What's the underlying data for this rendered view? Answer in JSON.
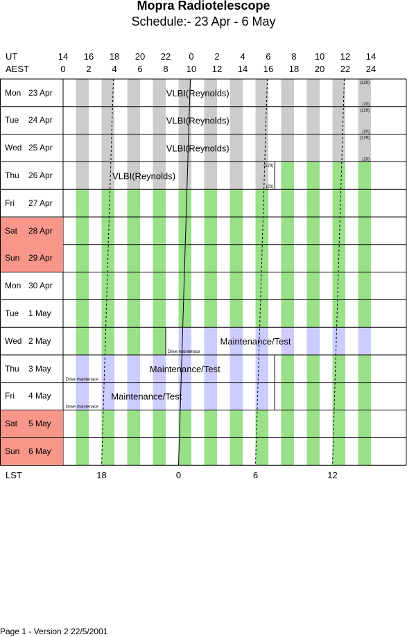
{
  "title": "Mopra Radiotelescope",
  "subtitle": "Schedule:- 23 Apr - 6  May",
  "header": {
    "ut_label": "UT",
    "aest_label": "AEST",
    "ut_hours": [
      "14",
      "16",
      "18",
      "20",
      "22",
      "0",
      "2",
      "4",
      "6",
      "8",
      "10",
      "12",
      "14"
    ],
    "aest_hours": [
      "0",
      "2",
      "4",
      "6",
      "8",
      "10",
      "12",
      "14",
      "16",
      "18",
      "20",
      "22",
      "24"
    ]
  },
  "days": [
    {
      "dow": "Mon",
      "date": "23 Apr",
      "weekend": false
    },
    {
      "dow": "Tue",
      "date": "24 Apr",
      "weekend": false
    },
    {
      "dow": "Wed",
      "date": "25 Apr",
      "weekend": false
    },
    {
      "dow": "Thu",
      "date": "26 Apr",
      "weekend": false
    },
    {
      "dow": "Fri",
      "date": "27 Apr",
      "weekend": false
    },
    {
      "dow": "Sat",
      "date": "28 Apr",
      "weekend": true
    },
    {
      "dow": "Sun",
      "date": "29 Apr",
      "weekend": true
    },
    {
      "dow": "Mon",
      "date": "30 Apr",
      "weekend": false
    },
    {
      "dow": "Tue",
      "date": "1  May",
      "weekend": false
    },
    {
      "dow": "Wed",
      "date": "2  May",
      "weekend": false
    },
    {
      "dow": "Thu",
      "date": "3  May",
      "weekend": false
    },
    {
      "dow": "Fri",
      "date": "4  May",
      "weekend": false
    },
    {
      "dow": "Sat",
      "date": "5  May",
      "weekend": true
    },
    {
      "dow": "Sun",
      "date": "6  May",
      "weekend": true
    }
  ],
  "colors": {
    "vlbi": "#cccccc",
    "free": "#99e089",
    "maint": "#ccccff",
    "weekend": "#f8968a"
  },
  "blocks": [
    {
      "day": 0,
      "start_aest": 1,
      "end_aest": 24,
      "kind": "vlbi",
      "label": "VLBI(Reynolds)",
      "label_at": 10.5,
      "corner_top": "(129)",
      "corner_bottom": "(20)"
    },
    {
      "day": 1,
      "start_aest": 1,
      "end_aest": 24,
      "kind": "vlbi",
      "label": "VLBI(Reynolds)",
      "label_at": 10.5,
      "corner_top": "(129)",
      "corner_bottom": "(20)"
    },
    {
      "day": 2,
      "start_aest": 1,
      "end_aest": 24,
      "kind": "vlbi",
      "label": "VLBI(Reynolds)",
      "label_at": 10.5,
      "corner_top": "(129)",
      "corner_bottom": "(20)"
    },
    {
      "day": 3,
      "start_aest": 1,
      "end_aest": 16.5,
      "kind": "vlbi",
      "label": "VLBI(Reynolds)",
      "label_at": 6.3,
      "corner_top": "(129)",
      "corner_bottom": "(20)"
    },
    {
      "day": 3,
      "start_aest": 16.5,
      "end_aest": 24,
      "kind": "free"
    },
    {
      "day": 4,
      "start_aest": 1,
      "end_aest": 24,
      "kind": "free"
    },
    {
      "day": 5,
      "start_aest": 1,
      "end_aest": 24,
      "kind": "free"
    },
    {
      "day": 6,
      "start_aest": 1,
      "end_aest": 24,
      "kind": "free"
    },
    {
      "day": 7,
      "start_aest": 1,
      "end_aest": 24,
      "kind": "free"
    },
    {
      "day": 8,
      "start_aest": 1,
      "end_aest": 24,
      "kind": "free"
    },
    {
      "day": 9,
      "start_aest": 1,
      "end_aest": 8,
      "kind": "free"
    },
    {
      "day": 9,
      "start_aest": 8,
      "end_aest": 24,
      "kind": "maint",
      "label": "Maintenance/Test",
      "label_at": 15,
      "small_label": "Drive maintenace"
    },
    {
      "day": 10,
      "start_aest": 1,
      "end_aest": 16.5,
      "kind": "maint",
      "label": "Maintenance/Test",
      "label_at": 9.5,
      "small_label": "Drive maintenace"
    },
    {
      "day": 10,
      "start_aest": 16.5,
      "end_aest": 24,
      "kind": "free"
    },
    {
      "day": 11,
      "start_aest": 1,
      "end_aest": 16.5,
      "kind": "maint",
      "label": "Maintenance/Test",
      "label_at": 6.5,
      "small_label": "Drive maintenace"
    },
    {
      "day": 11,
      "start_aest": 16.5,
      "end_aest": 24,
      "kind": "free"
    },
    {
      "day": 12,
      "start_aest": 1,
      "end_aest": 24,
      "kind": "free"
    },
    {
      "day": 13,
      "start_aest": 1,
      "end_aest": 24,
      "kind": "free"
    }
  ],
  "lst_label": "LST",
  "lst_ticks": [
    {
      "label": "18",
      "aest": 3
    },
    {
      "label": "0",
      "aest": 9
    },
    {
      "label": "6",
      "aest": 15
    },
    {
      "label": "12",
      "aest": 21
    }
  ],
  "footer": "Page 1 - Version 2  22/5/2001"
}
